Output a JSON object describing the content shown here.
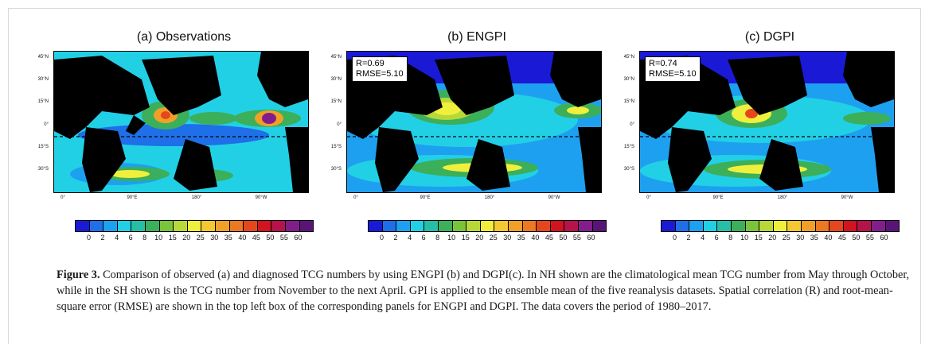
{
  "figure": {
    "panels": [
      {
        "title": "(a) Observations",
        "stats": null
      },
      {
        "title": "(b) ENGPI",
        "stats": {
          "r": "R=0.69",
          "rmse": "RMSE=5.10"
        }
      },
      {
        "title": "(c) DGPI",
        "stats": {
          "r": "R=0.74",
          "rmse": "RMSE=5.10"
        }
      }
    ],
    "lat_labels": [
      "45°N",
      "30°N",
      "15°N",
      "0°",
      "15°S",
      "30°S"
    ],
    "lon_labels": [
      "0°",
      "90°E",
      "180°",
      "90°W"
    ],
    "colorbar_labels": [
      "0",
      "2",
      "4",
      "6",
      "8",
      "10",
      "15",
      "20",
      "25",
      "30",
      "35",
      "40",
      "45",
      "50",
      "55",
      "60"
    ],
    "colorbar_colors": [
      "#1a1ad6",
      "#1e6fe8",
      "#1ea0f0",
      "#22d0e6",
      "#26bfa6",
      "#3caf5a",
      "#7ac43c",
      "#b8d83a",
      "#f0f03c",
      "#f5c832",
      "#f0a028",
      "#eb7822",
      "#e6461e",
      "#d2141e",
      "#b4144a",
      "#821e8c",
      "#5a1478"
    ],
    "caption_label": "Figure 3.",
    "caption_text": " Comparison of observed (a) and diagnosed TCG numbers by using ENGPI (b) and DGPI(c). In NH shown are the climatological mean TCG number from May through October, while in the SH shown is the TCG number from November to the next April. GPI is applied to the ensemble mean of the five reanalysis datasets. Spatial correlation (R) and root-mean-square error (RMSE) are shown in the top left box of the corresponding panels for ENGPI and DGPI. The data covers the period of 1980–2017."
  }
}
